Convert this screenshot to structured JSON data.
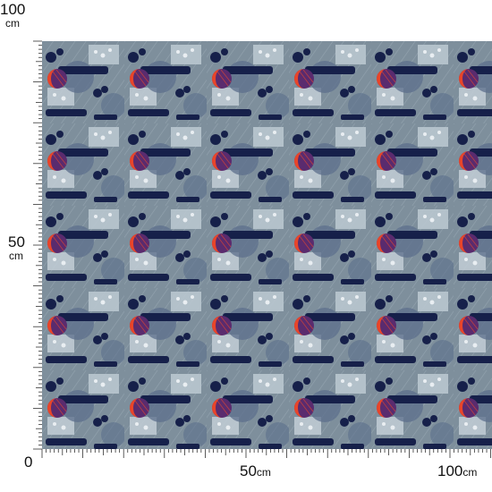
{
  "ruler": {
    "unit": "cm",
    "left_top_value": "100",
    "left_top_unit": "cm",
    "left_mid_value": "50",
    "left_mid_unit": "cm",
    "origin": "0",
    "bottom_mid_value": "50",
    "bottom_mid_unit": "cm",
    "bottom_right_value": "100",
    "bottom_right_unit": "cm"
  },
  "fabric": {
    "pattern_colors": {
      "background": "#7e8f9c",
      "light_block": "#b9c7d0",
      "navy": "#16204a",
      "circle_blue": "#5c6f8c",
      "red": "#e8452a",
      "purple": "#5a2b6e"
    }
  }
}
